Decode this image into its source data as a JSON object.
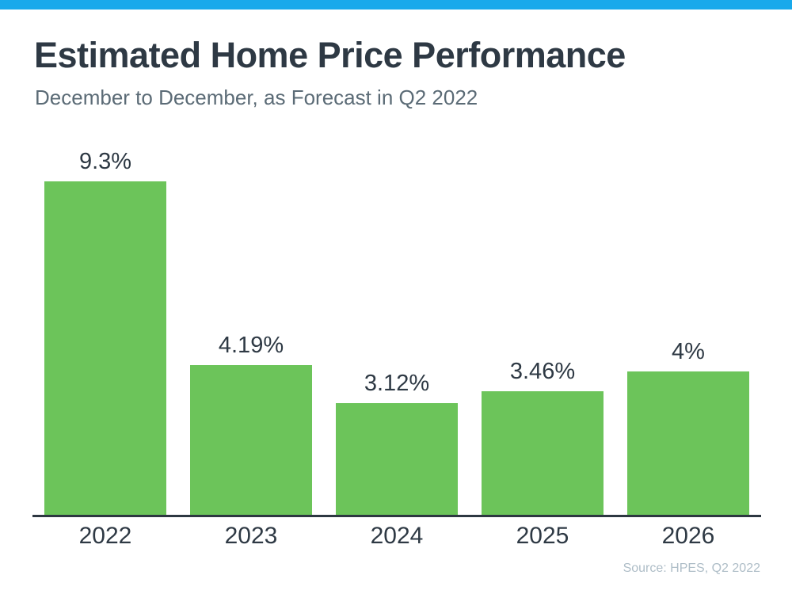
{
  "page": {
    "background_color": "#ffffff",
    "accent_stripe_color": "#18a9eb"
  },
  "header": {
    "title": "Estimated Home Price Performance",
    "subtitle": "December to December, as Forecast in Q2 2022"
  },
  "chart_data": {
    "type": "bar",
    "categories": [
      "2022",
      "2023",
      "2024",
      "2025",
      "2026"
    ],
    "values": [
      9.3,
      4.19,
      3.12,
      3.46,
      4
    ],
    "value_labels": [
      "9.3%",
      "4.19%",
      "3.12%",
      "3.46%",
      "4%"
    ],
    "title": "Estimated Home Price Performance",
    "subtitle": "December to December, as Forecast in Q2 2022",
    "xlabel": "",
    "ylabel": "",
    "ylim": [
      0,
      10
    ],
    "grid": false,
    "legend": false,
    "bar_color": "#6cc45a",
    "axis_color": "#2d3741",
    "label_color": "#2e3944"
  },
  "footer": {
    "source": "Source: HPES, Q2 2022"
  }
}
